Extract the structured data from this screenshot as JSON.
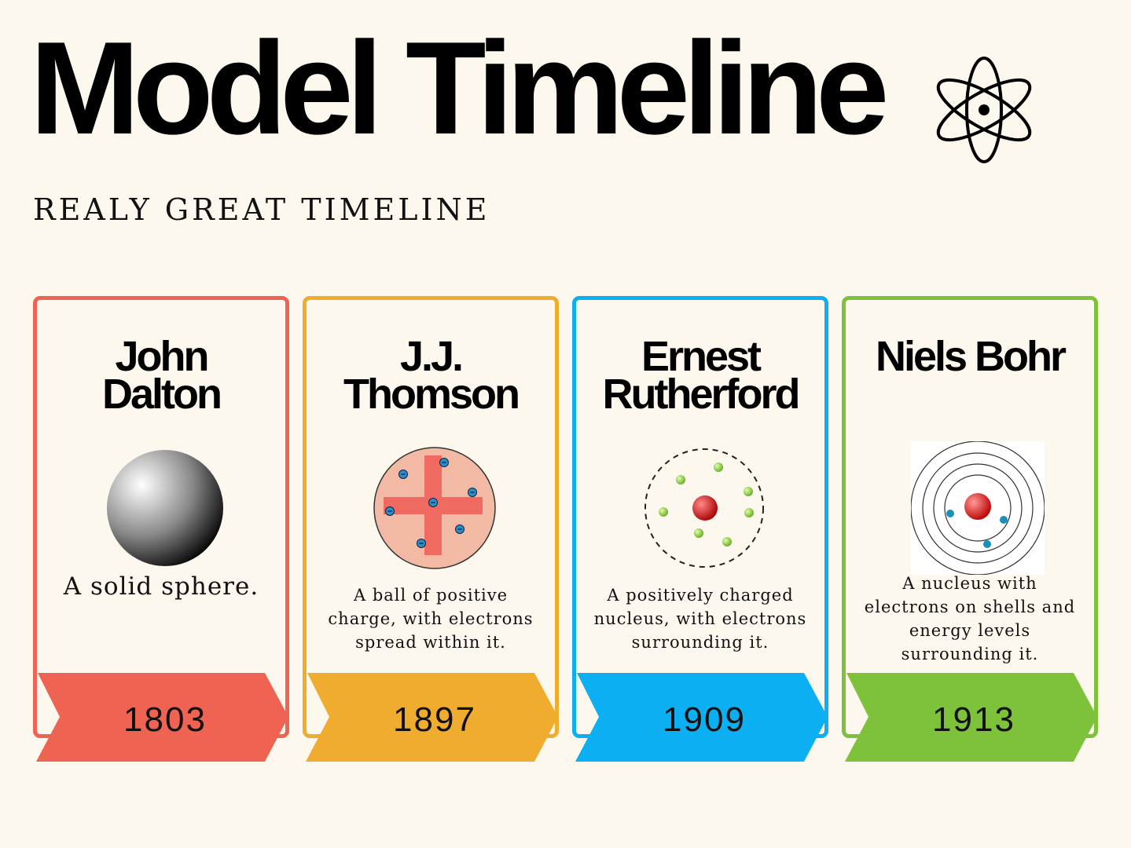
{
  "header": {
    "title": "Model Timeline",
    "subtitle": "REALY GREAT TIMELINE"
  },
  "cards": [
    {
      "name_lines": [
        "John",
        "Dalton"
      ],
      "description": "A solid sphere.",
      "year": "1803"
    },
    {
      "name_lines": [
        "J.J.",
        "Thomson"
      ],
      "description": "A ball of positive charge, with electrons spread within it.",
      "year": "1897"
    },
    {
      "name_lines": [
        "Ernest",
        "Rutherford"
      ],
      "description": "A positively charged nucleus, with electrons surrounding it.",
      "year": "1909"
    },
    {
      "name_lines": [
        "Niels Bohr"
      ],
      "description": "A nucleus with electrons on shells and energy levels surrounding it.",
      "year": "1913"
    }
  ]
}
